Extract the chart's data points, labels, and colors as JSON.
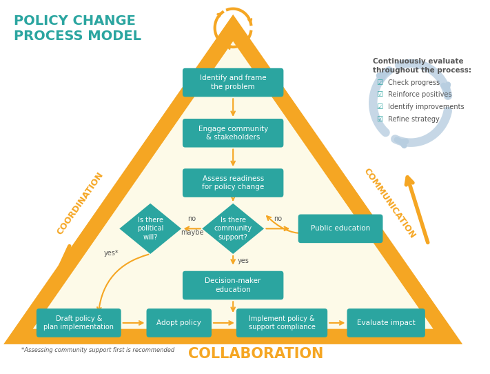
{
  "title": "POLICY CHANGE\nPROCESS MODEL",
  "title_color": "#2BA5A0",
  "bg_color": "#FFFFFF",
  "triangle_fill": "#FDFAE8",
  "orange_color": "#F5A623",
  "teal_color": "#2BA5A0",
  "light_blue": "#B8CEE0",
  "text_dark": "#555555",
  "text_white": "#FFFFFF",
  "continuously_text": "Continuously evaluate\nthroughout the process:",
  "checklist": [
    "Check progress",
    "Reinforce positives",
    "Identify improvements",
    "Refine strategy"
  ],
  "footnote": "*Assessing community support first is recommended",
  "collaboration_text": "COLLABORATION"
}
